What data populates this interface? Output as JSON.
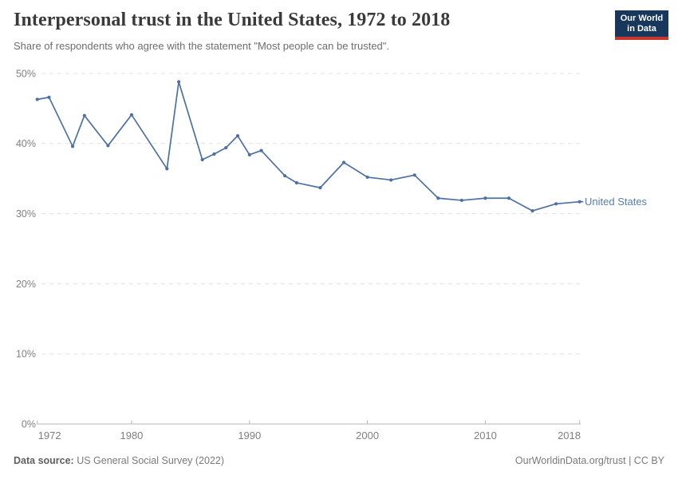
{
  "header": {
    "title": "Interpersonal trust in the United States, 1972 to 2018",
    "subtitle": "Share of respondents who agree with the statement \"Most people can be trusted\".",
    "logo": {
      "line1": "Our World",
      "line2": "in Data",
      "bg_color": "#18375c",
      "accent_color": "#c5362e"
    }
  },
  "chart_data": {
    "type": "line",
    "title": "Interpersonal trust in the United States, 1972 to 2018",
    "subtitle": "Share of respondents who agree with the statement \"Most people can be trusted\".",
    "xlabel": "",
    "ylabel": "",
    "xlim": [
      1972,
      2018
    ],
    "ylim": [
      0,
      50
    ],
    "x_ticks": [
      1972,
      1980,
      1990,
      2000,
      2010,
      2018
    ],
    "y_ticks": [
      0,
      10,
      20,
      30,
      40,
      50
    ],
    "y_tick_suffix": "%",
    "grid": "horizontal-dashed",
    "legend_position": "end-of-line",
    "series": [
      {
        "name": "United States",
        "color": "#4d70a5",
        "points": [
          [
            1972,
            46.3
          ],
          [
            1973,
            46.6
          ],
          [
            1975,
            39.6
          ],
          [
            1976,
            44.0
          ],
          [
            1978,
            39.7
          ],
          [
            1980,
            44.1
          ],
          [
            1983,
            36.4
          ],
          [
            1984,
            48.8
          ],
          [
            1986,
            37.7
          ],
          [
            1987,
            38.5
          ],
          [
            1988,
            39.4
          ],
          [
            1989,
            41.1
          ],
          [
            1990,
            38.4
          ],
          [
            1991,
            39.0
          ],
          [
            1993,
            35.4
          ],
          [
            1994,
            34.4
          ],
          [
            1996,
            33.7
          ],
          [
            1998,
            37.3
          ],
          [
            2000,
            35.2
          ],
          [
            2002,
            34.8
          ],
          [
            2004,
            35.5
          ],
          [
            2006,
            32.2
          ],
          [
            2008,
            31.9
          ],
          [
            2010,
            32.2
          ],
          [
            2012,
            32.2
          ],
          [
            2014,
            30.4
          ],
          [
            2016,
            31.4
          ],
          [
            2018,
            31.7
          ]
        ]
      }
    ],
    "colors": {
      "line": "#4d70a5",
      "series_label": "#577db1",
      "gridline": "#e3e3e3",
      "axis_line": "#b5b5b5",
      "tick_label": "#808080"
    }
  },
  "footer": {
    "source_label": "Data source:",
    "source_text": " US General Social Survey (2022)",
    "right_text": "OurWorldinData.org/trust | CC BY"
  }
}
